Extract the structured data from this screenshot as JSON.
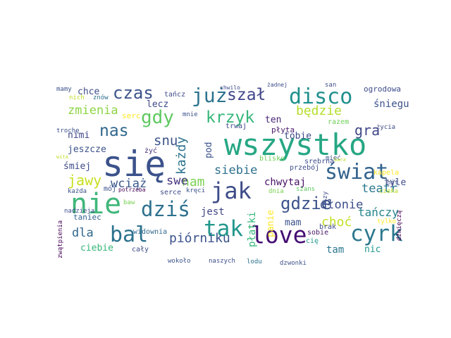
{
  "words": [
    {
      "text": "się",
      "color": "#3b528b"
    },
    {
      "text": "wszystko",
      "color": "#26a784"
    },
    {
      "text": "nie",
      "color": "#40b77a"
    },
    {
      "text": "dziś",
      "color": "#2d718e"
    },
    {
      "text": "love",
      "color": "#440e73"
    },
    {
      "text": "jak",
      "color": "#3e4c8a"
    },
    {
      "text": "disco",
      "color": "#20908d"
    },
    {
      "text": "bal",
      "color": "#2c728e"
    },
    {
      "text": "tak",
      "color": "#22978c"
    },
    {
      "text": "cyrk",
      "color": "#2c788e"
    },
    {
      "text": "świat",
      "color": "#33638d"
    },
    {
      "text": "już",
      "color": "#2c738e"
    },
    {
      "text": "szał",
      "color": "#404688"
    },
    {
      "text": "czas",
      "color": "#3b528b"
    },
    {
      "text": "krzyk",
      "color": "#35b779"
    },
    {
      "text": "gdy",
      "color": "#5ec962"
    },
    {
      "text": "nas",
      "color": "#31688e"
    },
    {
      "text": "zmienia",
      "color": "#8dd544"
    },
    {
      "text": "będzie",
      "color": "#b5de2b"
    },
    {
      "text": "gra",
      "color": "#3f4889"
    },
    {
      "text": "gdzie",
      "color": "#3b528b"
    },
    {
      "text": "nam",
      "color": "#7ad151"
    },
    {
      "text": "snu",
      "color": "#3b528b"
    },
    {
      "text": "każdy",
      "color": "#2c738e"
    },
    {
      "text": "siebie",
      "color": "#2d708e"
    },
    {
      "text": "swe",
      "color": "#46327e"
    },
    {
      "text": "wciąż",
      "color": "#38588c"
    },
    {
      "text": "jawy",
      "color": "#c8e020"
    },
    {
      "text": "dłonie",
      "color": "#3d4d8a"
    },
    {
      "text": "teatr",
      "color": "#2a788e"
    },
    {
      "text": "piórniku",
      "color": "#3b528b"
    },
    {
      "text": "dla",
      "color": "#31688e"
    },
    {
      "text": "choć",
      "color": "#c2df23"
    },
    {
      "text": "tańczy",
      "color": "#25858e"
    },
    {
      "text": "chwytaj",
      "color": "#471063"
    },
    {
      "text": "jest",
      "color": "#404688"
    },
    {
      "text": "płatki",
      "color": "#35b779"
    },
    {
      "text": "tam",
      "color": "#2a768e"
    },
    {
      "text": "nic",
      "color": "#1f978b"
    },
    {
      "text": "tyle",
      "color": "#3e4c8a"
    },
    {
      "text": "lecz",
      "color": "#3e4a89"
    },
    {
      "text": "chce",
      "color": "#3e4c8a"
    },
    {
      "text": "śniegu",
      "color": "#3b528b"
    },
    {
      "text": "ogrodowa",
      "color": "#3e4c8a"
    },
    {
      "text": "ten",
      "color": "#482677"
    },
    {
      "text": "tobie",
      "color": "#3e4a89"
    },
    {
      "text": "jeszcze",
      "color": "#3b528b"
    },
    {
      "text": "nimi",
      "color": "#3f4889"
    },
    {
      "text": "śmiej",
      "color": "#3e4a89"
    },
    {
      "text": "pod",
      "color": "#3b528b"
    },
    {
      "text": "mam",
      "color": "#3b528b"
    },
    {
      "text": "panie",
      "color": "#fde725"
    },
    {
      "text": "ciebie",
      "color": "#35b779"
    },
    {
      "text": "taniec",
      "color": "#355f8d"
    },
    {
      "text": "widownia",
      "color": "#31688e"
    },
    {
      "text": "sobie",
      "color": "#481769"
    },
    {
      "text": "mamy",
      "color": "#3b528b"
    },
    {
      "text": "nich",
      "color": "#bddf26"
    },
    {
      "text": "znów",
      "color": "#2d708e"
    },
    {
      "text": "tańcz",
      "color": "#3e4c8a"
    },
    {
      "text": "serc",
      "color": "#fde725"
    },
    {
      "text": "mnie",
      "color": "#3b528b"
    },
    {
      "text": "trwaj",
      "color": "#3e4a89"
    },
    {
      "text": "płyta",
      "color": "#481769"
    },
    {
      "text": "razem",
      "color": "#6ece58"
    },
    {
      "text": "życia",
      "color": "#3e4c8a"
    },
    {
      "text": "trochę",
      "color": "#3b528b"
    },
    {
      "text": "żyć",
      "color": "#46327e"
    },
    {
      "text": "blisko",
      "color": "#6ece58"
    },
    {
      "text": "mieć",
      "color": "#3b528b"
    },
    {
      "text": "przebój",
      "color": "#3e4c8a"
    },
    {
      "text": "kapela",
      "color": "#fde725"
    },
    {
      "text": "hit",
      "color": "#3e4c8a"
    },
    {
      "text": "każda",
      "color": "#3b528b"
    },
    {
      "text": "mój",
      "color": "#3b528b"
    },
    {
      "text": "serce",
      "color": "#3e4c8a"
    },
    {
      "text": "kręci",
      "color": "#3b528b"
    },
    {
      "text": "dnia",
      "color": "#7ad151"
    },
    {
      "text": "szans",
      "color": "#5ec962"
    },
    {
      "text": "czeka",
      "color": "#bddf26"
    },
    {
      "text": "potrzeba",
      "color": "#440154"
    },
    {
      "text": "baw",
      "color": "#7ad151"
    },
    {
      "text": "nadzieja",
      "color": "#3e4c8a"
    },
    {
      "text": "łzy",
      "color": "#3e4c8a"
    },
    {
      "text": "brak",
      "color": "#3e4c8a"
    },
    {
      "text": "cię",
      "color": "#1f978b"
    },
    {
      "text": "tylko",
      "color": "#fde725"
    },
    {
      "text": "zwątpienia",
      "color": "#440154"
    },
    {
      "text": "cały",
      "color": "#3e4c8a"
    },
    {
      "text": "wokoło",
      "color": "#3b528b"
    },
    {
      "text": "naszych",
      "color": "#3e4c8a"
    },
    {
      "text": "lodu",
      "color": "#2c738e"
    },
    {
      "text": "dzwonki",
      "color": "#3b528b"
    },
    {
      "text": "dźwięczą",
      "color": "#440154"
    },
    {
      "text": "srebrna",
      "color": "#3e4c8a"
    },
    {
      "text": "chwilo",
      "color": "#3e4c8a"
    },
    {
      "text": "żadnej",
      "color": "#3e4c8a"
    },
    {
      "text": "san",
      "color": "#3e4c8a"
    },
    {
      "text": "wita",
      "color": "#bddf26"
    },
    {
      "text": "bara",
      "color": "#bddf26"
    }
  ]
}
